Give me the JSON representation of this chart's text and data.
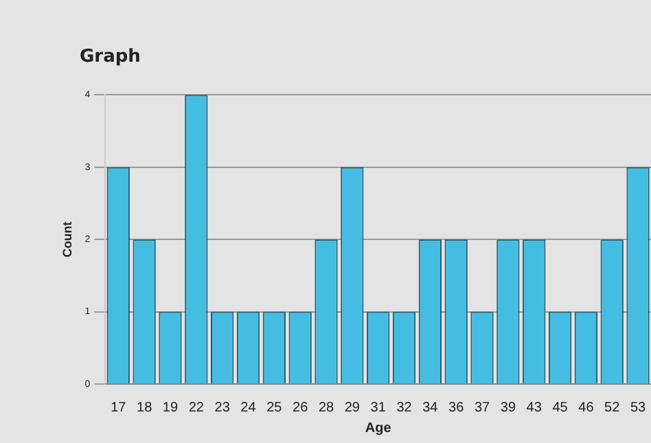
{
  "chart_data": {
    "type": "bar",
    "title": "Graph",
    "xlabel": "Age",
    "ylabel": "Count",
    "categories": [
      "17",
      "18",
      "19",
      "22",
      "23",
      "24",
      "25",
      "26",
      "28",
      "29",
      "31",
      "32",
      "34",
      "36",
      "37",
      "39",
      "43",
      "45",
      "46",
      "52",
      "53"
    ],
    "values": [
      3,
      2,
      1,
      4,
      1,
      1,
      1,
      1,
      2,
      3,
      1,
      1,
      2,
      2,
      1,
      2,
      2,
      1,
      1,
      2,
      3
    ],
    "color": "#45bde3",
    "ylim": [
      0,
      4
    ],
    "yticks": [
      0,
      1,
      2,
      3,
      4
    ],
    "grid": "y",
    "legend": false
  }
}
